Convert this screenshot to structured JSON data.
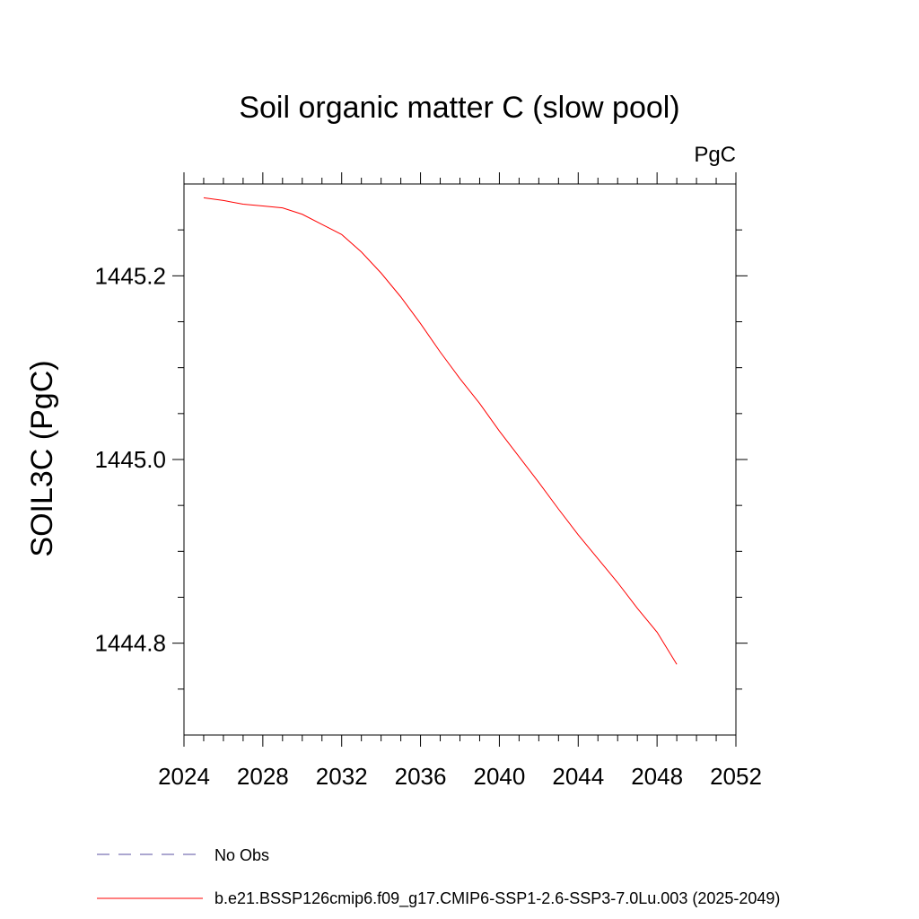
{
  "chart_data": {
    "type": "line",
    "title": "Soil organic matter C (slow pool)",
    "units_label": "PgC",
    "ylabel": "SOIL3C  (PgC)",
    "xlabel": "",
    "xlim": [
      2024,
      2052
    ],
    "ylim": [
      1444.7,
      1445.3
    ],
    "x_ticks": [
      2024,
      2028,
      2032,
      2036,
      2040,
      2044,
      2048,
      2052
    ],
    "x_minor_ticks": [
      2025,
      2026,
      2027,
      2029,
      2030,
      2031,
      2033,
      2034,
      2035,
      2037,
      2038,
      2039,
      2041,
      2042,
      2043,
      2045,
      2046,
      2047,
      2049,
      2050,
      2051
    ],
    "y_ticks": [
      1444.8,
      1445.0,
      1445.2
    ],
    "y_tick_labels": [
      "1444.8",
      "1445.0",
      "1445.2"
    ],
    "y_minor_ticks": [
      1444.75,
      1444.85,
      1444.9,
      1444.95,
      1445.05,
      1445.1,
      1445.15,
      1445.25
    ],
    "grid": false,
    "series": [
      {
        "name": "b.e21.BSSP126cmip6.f09_g17.CMIP6-SSP1-2.6-SSP3-7.0Lu.003 (2025-2049)",
        "color": "#ff0000",
        "x": [
          2025,
          2026,
          2027,
          2028,
          2029,
          2030,
          2031,
          2032,
          2033,
          2034,
          2035,
          2036,
          2037,
          2038,
          2039,
          2040,
          2041,
          2042,
          2043,
          2044,
          2045,
          2046,
          2047,
          2048,
          2049
        ],
        "y": [
          1445.285,
          1445.282,
          1445.278,
          1445.276,
          1445.274,
          1445.267,
          1445.256,
          1445.245,
          1445.226,
          1445.203,
          1445.177,
          1445.148,
          1445.117,
          1445.088,
          1445.061,
          1445.031,
          1445.003,
          1444.975,
          1444.946,
          1444.918,
          1444.892,
          1444.866,
          1444.838,
          1444.812,
          1444.777
        ]
      }
    ],
    "legend": {
      "placement": "bottom",
      "entries": [
        {
          "label": "No Obs",
          "color": "#5a4fa0",
          "style": "dashed"
        },
        {
          "label": "b.e21.BSSP126cmip6.f09_g17.CMIP6-SSP1-2.6-SSP3-7.0Lu.003 (2025-2049)",
          "color": "#ff0000",
          "style": "solid"
        }
      ]
    }
  }
}
